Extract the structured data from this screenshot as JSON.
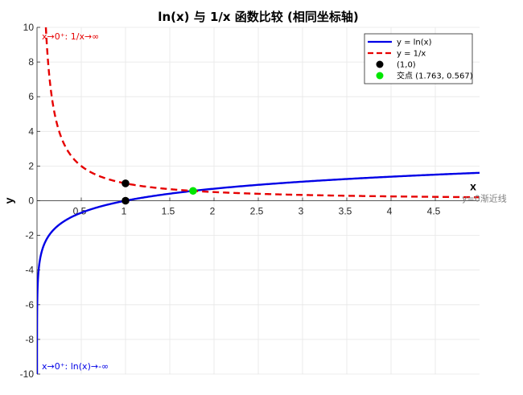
{
  "chart_data": {
    "type": "line",
    "title": "ln(x) 与 1/x 函数比较 (相同坐标轴)",
    "xlabel": "x",
    "ylabel": "y",
    "xlim": [
      0,
      5
    ],
    "ylim": [
      -10,
      10
    ],
    "x_ticks": [
      0.5,
      1,
      1.5,
      2,
      2.5,
      3,
      3.5,
      4,
      4.5
    ],
    "y_ticks": [
      -10,
      -8,
      -6,
      -4,
      -2,
      0,
      2,
      4,
      6,
      8,
      10
    ],
    "x_tick_labels": [
      "0.5",
      "1",
      "1.5",
      "2",
      "2.5",
      "3",
      "3.5",
      "4",
      "4.5"
    ],
    "y_tick_labels": [
      "-10",
      "-8",
      "-6",
      "-4",
      "-2",
      "0",
      "2",
      "4",
      "6",
      "8",
      "10"
    ],
    "grid": true,
    "legend_position": "top-right",
    "series": [
      {
        "name": "y = ln(x)",
        "function": "ln",
        "color": "#0000e6",
        "style": "solid",
        "x_range": [
          4.54e-05,
          5
        ]
      },
      {
        "name": "y = 1/x",
        "function": "reciprocal",
        "color": "#e60000",
        "style": "dashed",
        "x_range": [
          0.1,
          5
        ]
      }
    ],
    "points": [
      {
        "name": "(1,0)",
        "x": 1,
        "y": 0,
        "color": "#000000"
      },
      {
        "name": "(1,1)",
        "x": 1,
        "y": 1,
        "color": "#000000",
        "in_legend": false
      },
      {
        "name": "交点 (1.763, 0.567)",
        "x": 1.763,
        "y": 0.567,
        "color": "#00e600"
      }
    ],
    "annotations": [
      {
        "text": "x→0⁺: 1/x→∞",
        "color": "#e60000",
        "position": "top-left"
      },
      {
        "text": "x→0⁺: ln(x)→-∞",
        "color": "#0000e6",
        "position": "bottom-left"
      },
      {
        "text": "y=0渐近线",
        "color": "#808080",
        "position": "right"
      }
    ]
  }
}
